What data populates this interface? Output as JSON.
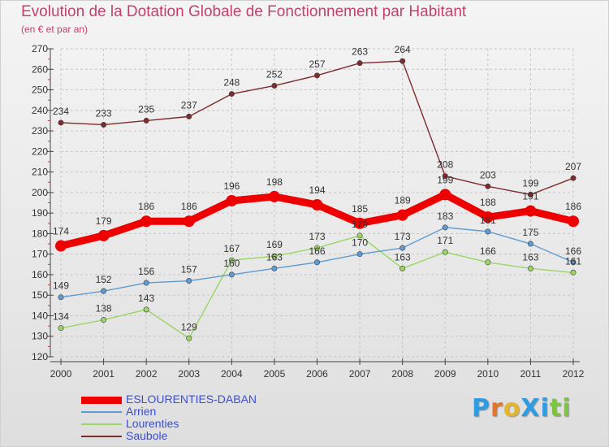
{
  "header": {
    "title": "Evolution de la Dotation Globale de Fonctionnement par Habitant",
    "subtitle": "(en € et par an)"
  },
  "brand": {
    "text": "ProXiti",
    "colors": [
      "#2f9be0",
      "#e5732a",
      "#e2b52b",
      "#2f9be0",
      "#2f9be0",
      "#7dc442",
      "#7dc442"
    ]
  },
  "chart_data": {
    "type": "line",
    "title": "Evolution de la Dotation Globale de Fonctionnement par Habitant",
    "subtitle": "(en € et par an)",
    "xlabel": "",
    "ylabel": "",
    "x": [
      "2000",
      "2001",
      "2002",
      "2003",
      "2004",
      "2005",
      "2006",
      "2007",
      "2008",
      "2009",
      "2010",
      "2011",
      "2012"
    ],
    "ylim": [
      120,
      270
    ],
    "yticks": [
      120,
      130,
      140,
      150,
      160,
      170,
      180,
      190,
      200,
      210,
      220,
      230,
      240,
      250,
      260,
      270
    ],
    "grid": true,
    "legend_position": "bottom-left",
    "series": [
      {
        "name": "ESLOURENTIES-DABAN",
        "color": "#ee0000",
        "values": [
          174,
          179,
          186,
          186,
          196,
          198,
          194,
          185,
          189,
          199,
          188,
          191,
          186
        ]
      },
      {
        "name": "Arrien",
        "color": "#5e9bd0",
        "values": [
          149,
          152,
          156,
          157,
          160,
          163,
          166,
          170,
          173,
          183,
          181,
          175,
          166
        ]
      },
      {
        "name": "Lourenties",
        "color": "#9ad564",
        "values": [
          134,
          138,
          143,
          129,
          167,
          169,
          173,
          179,
          163,
          171,
          166,
          163,
          161
        ]
      },
      {
        "name": "Saubole",
        "color": "#7f2b2b",
        "values": [
          234,
          233,
          235,
          237,
          248,
          252,
          257,
          263,
          264,
          208,
          203,
          199,
          207
        ]
      }
    ],
    "data_labels": [
      [
        "174",
        "179",
        "186",
        "186",
        "196",
        "198",
        "194",
        "185",
        "189",
        "199",
        "188",
        "191",
        "186"
      ],
      [
        "149",
        "152",
        "156",
        "157",
        "160",
        "163",
        "166",
        "170",
        "173",
        "183",
        "181",
        "175",
        "166"
      ],
      [
        "134",
        "138",
        "143",
        "129",
        "167",
        "169",
        "173",
        "179",
        "163",
        "171",
        "166",
        "163",
        "161"
      ],
      [
        "234",
        "233",
        "235",
        "237",
        "248",
        "252",
        "257",
        "263",
        "264",
        "208",
        "203",
        "199",
        "207"
      ]
    ]
  }
}
